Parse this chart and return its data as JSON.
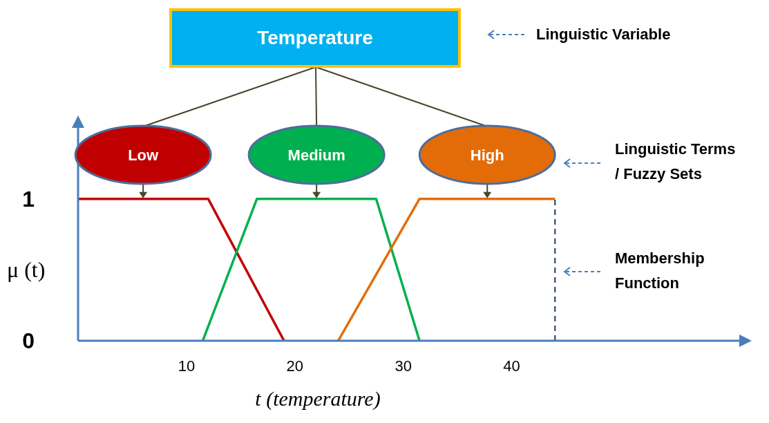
{
  "chart_data": {
    "type": "line",
    "title": "Temperature",
    "xlabel": "t (temperature)",
    "ylabel": "μ (t)",
    "series": [
      {
        "name": "Low",
        "color": "#c00000",
        "x": [
          0,
          12,
          19
        ],
        "values": [
          1,
          1,
          0
        ]
      },
      {
        "name": "Medium",
        "color": "#00b050",
        "x": [
          11.5,
          16.5,
          27.5,
          31.5
        ],
        "values": [
          0,
          1,
          1,
          0
        ]
      },
      {
        "name": "High",
        "color": "#e36c09",
        "x": [
          24,
          31.5,
          44
        ],
        "values": [
          0,
          1,
          1
        ]
      }
    ],
    "xlim": [
      0,
      61
    ],
    "xticks": [
      10,
      20,
      30,
      40
    ],
    "ylim": [
      0,
      1.5
    ],
    "yticks": [
      0,
      1
    ],
    "ref_lines": [
      {
        "axis": "x",
        "value": 44,
        "color": "#1f3864",
        "line_style": "dashed"
      }
    ],
    "annotations": [
      "Linguistic Variable",
      "Linguistic Terms / Fuzzy Sets",
      "Membership Function"
    ],
    "grid": false,
    "marker": "none",
    "line_style": "solid"
  }
}
